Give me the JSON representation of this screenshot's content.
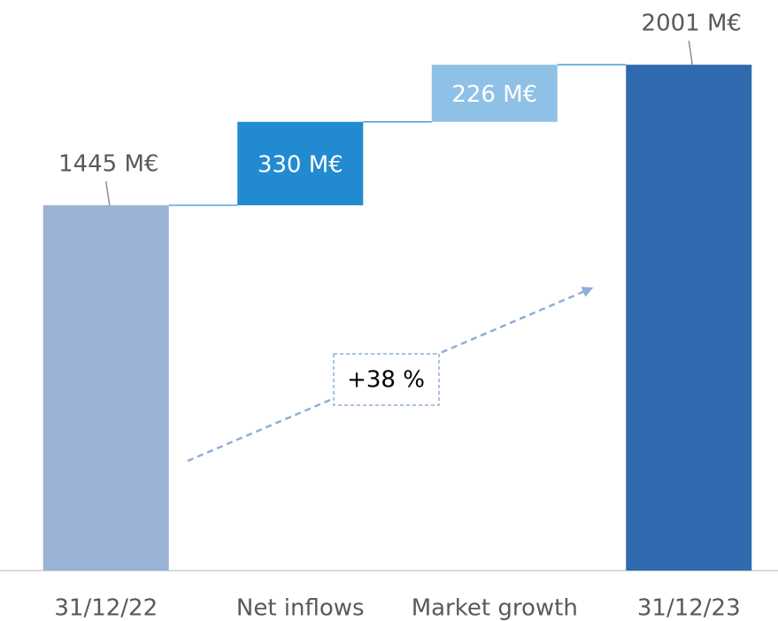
{
  "chart_data": {
    "type": "waterfall",
    "categories": [
      "31/12/22",
      "Net inflows",
      "Market growth",
      "31/12/23"
    ],
    "values": [
      1445,
      330,
      226,
      2001
    ],
    "value_labels": [
      "1445 M€",
      "330 M€",
      "226 M€",
      "2001 M€"
    ],
    "measures": [
      "total",
      "relative",
      "relative",
      "total"
    ],
    "colors": [
      "#9ab3d5",
      "#228ad0",
      "#8fc1e6",
      "#2f6aaf"
    ],
    "annotation": "+38 %",
    "ylim": [
      0,
      2250
    ]
  }
}
